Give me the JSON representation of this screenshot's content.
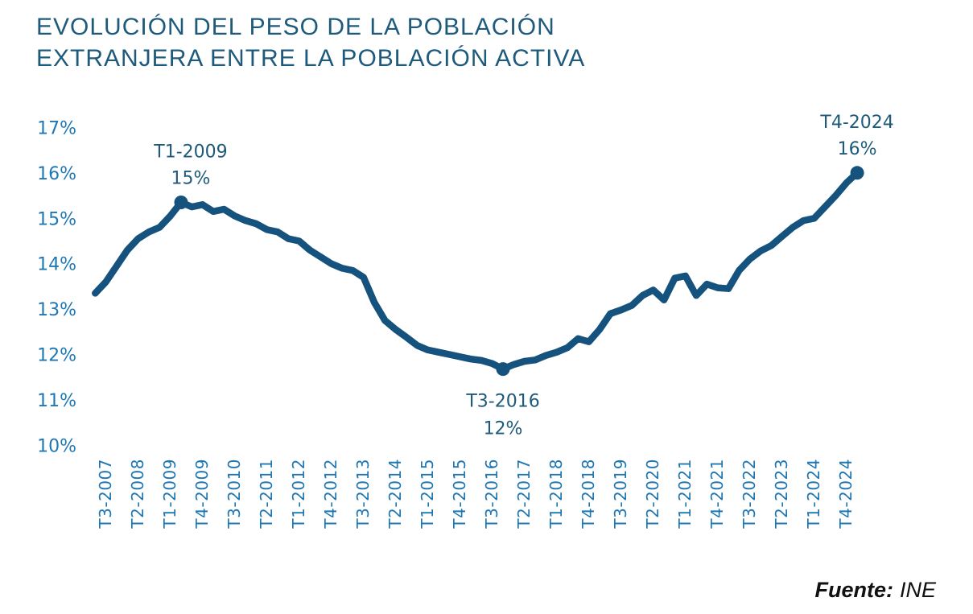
{
  "title": {
    "line1": "EVOLUCIÓN DEL PESO DE LA POBLACIÓN",
    "line2": "EXTRANJERA ENTRE LA POBLACIÓN ACTIVA"
  },
  "source": {
    "label": "Fuente:",
    "value": "INE"
  },
  "colors": {
    "title": "#1E5A7B",
    "line": "#15527D",
    "marker": "#15527D",
    "tick_label": "#1F77B4",
    "annotation": "#1E5A7B",
    "source_text": "#111111",
    "background": "#FFFFFF"
  },
  "chart_data": {
    "type": "line",
    "title": "EVOLUCIÓN DEL PESO DE LA POBLACIÓN EXTRANJERA ENTRE LA POBLACIÓN ACTIVA",
    "ylabel": "",
    "xlabel": "",
    "ylim": [
      10,
      17
    ],
    "grid": false,
    "y_tick_labels": [
      "17%",
      "16%",
      "15%",
      "14%",
      "13%",
      "12%",
      "11%",
      "10%"
    ],
    "y_tick_values": [
      17,
      16,
      15,
      14,
      13,
      12,
      11,
      10
    ],
    "x_tick_labels": [
      "T3-2007",
      "T2-2008",
      "T1-2009",
      "T4-2009",
      "T3-2010",
      "T2-2011",
      "T1-2012",
      "T4-2012",
      "T3-2013",
      "T2-2014",
      "T1-2015",
      "T4-2015",
      "T3-2016",
      "T2-2017",
      "T1-2018",
      "T4-2018",
      "T3-2019",
      "T2-2020",
      "T1-2021",
      "T4-2021",
      "T3-2022",
      "T2-2023",
      "T1-2024",
      "T4-2024"
    ],
    "quarters": [
      "T1-2007",
      "T2-2007",
      "T3-2007",
      "T4-2007",
      "T1-2008",
      "T2-2008",
      "T3-2008",
      "T4-2008",
      "T1-2009",
      "T2-2009",
      "T3-2009",
      "T4-2009",
      "T1-2010",
      "T2-2010",
      "T3-2010",
      "T4-2010",
      "T1-2011",
      "T2-2011",
      "T3-2011",
      "T4-2011",
      "T1-2012",
      "T2-2012",
      "T3-2012",
      "T4-2012",
      "T1-2013",
      "T2-2013",
      "T3-2013",
      "T4-2013",
      "T1-2014",
      "T2-2014",
      "T3-2014",
      "T4-2014",
      "T1-2015",
      "T2-2015",
      "T3-2015",
      "T4-2015",
      "T1-2016",
      "T2-2016",
      "T3-2016",
      "T4-2016",
      "T1-2017",
      "T2-2017",
      "T3-2017",
      "T4-2017",
      "T1-2018",
      "T2-2018",
      "T3-2018",
      "T4-2018",
      "T1-2019",
      "T2-2019",
      "T3-2019",
      "T4-2019",
      "T1-2020",
      "T2-2020",
      "T3-2020",
      "T4-2020",
      "T1-2021",
      "T2-2021",
      "T3-2021",
      "T4-2021",
      "T1-2022",
      "T2-2022",
      "T3-2022",
      "T4-2022",
      "T1-2023",
      "T2-2023",
      "T3-2023",
      "T4-2023",
      "T1-2024",
      "T2-2024",
      "T3-2024",
      "T4-2024"
    ],
    "values": [
      13.35,
      13.6,
      13.95,
      14.3,
      14.55,
      14.7,
      14.8,
      15.05,
      15.35,
      15.25,
      15.3,
      15.15,
      15.2,
      15.05,
      14.95,
      14.88,
      14.75,
      14.7,
      14.55,
      14.5,
      14.3,
      14.15,
      14.0,
      13.9,
      13.85,
      13.7,
      13.15,
      12.75,
      12.55,
      12.38,
      12.2,
      12.1,
      12.05,
      12.0,
      11.95,
      11.9,
      11.87,
      11.8,
      11.68,
      11.78,
      11.85,
      11.88,
      11.98,
      12.05,
      12.15,
      12.35,
      12.28,
      12.55,
      12.9,
      12.98,
      13.08,
      13.3,
      13.42,
      13.2,
      13.68,
      13.73,
      13.3,
      13.55,
      13.47,
      13.45,
      13.85,
      14.1,
      14.28,
      14.4,
      14.6,
      14.8,
      14.95,
      15.0,
      15.25,
      15.5,
      15.78,
      16.0
    ],
    "annotations": [
      {
        "quarter": "T1-2009",
        "line1": "T1-2009",
        "line2": "15%",
        "position": "above"
      },
      {
        "quarter": "T3-2016",
        "line1": "T3-2016",
        "line2": "12%",
        "position": "below"
      },
      {
        "quarter": "T4-2024",
        "line1": "T4-2024",
        "line2": "16%",
        "position": "above"
      }
    ]
  }
}
